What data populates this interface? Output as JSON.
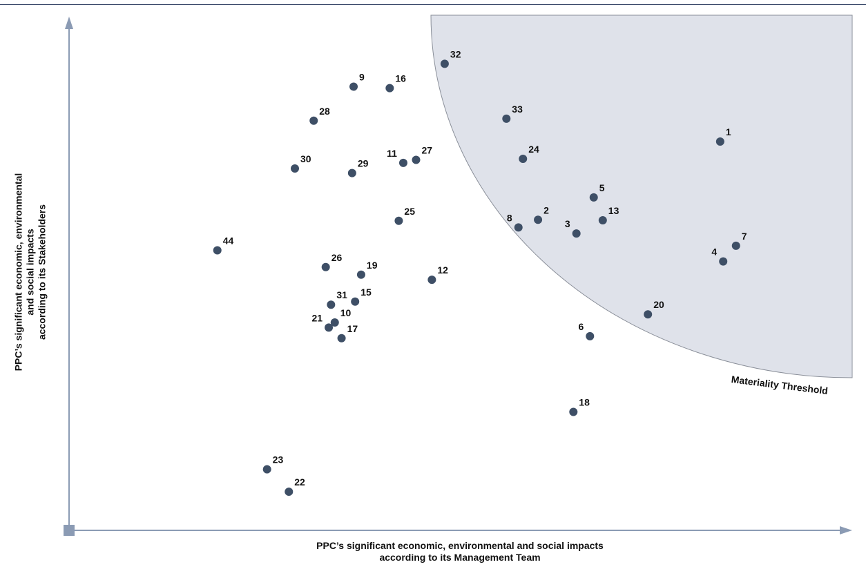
{
  "colors": {
    "point": "#3e4f66",
    "region": "#dfe2ea",
    "axis": "#8b9bb4",
    "frame": "#3b4a6b"
  },
  "threshold_label": "Materiality Threshold",
  "chart_data": {
    "type": "scatter",
    "title": "",
    "xlabel": "PPC’s significant economic, environmental and social impacts\naccording to its Management Team",
    "ylabel": "PPC’s significant economic, environmental\nand social impacts\naccording to its Stakeholders",
    "xlim": [
      0,
      100
    ],
    "ylim": [
      0,
      100
    ],
    "grid": false,
    "legend": "none",
    "points": [
      {
        "label": "1",
        "x": 86.5,
        "y": 76.5
      },
      {
        "label": "2",
        "x": 62.3,
        "y": 61.1
      },
      {
        "label": "3",
        "x": 67.4,
        "y": 58.4
      },
      {
        "label": "4",
        "x": 86.9,
        "y": 52.9
      },
      {
        "label": "5",
        "x": 69.7,
        "y": 65.5
      },
      {
        "label": "6",
        "x": 69.2,
        "y": 38.2
      },
      {
        "label": "7",
        "x": 88.6,
        "y": 56.0
      },
      {
        "label": "8",
        "x": 59.7,
        "y": 59.6
      },
      {
        "label": "9",
        "x": 37.8,
        "y": 87.3
      },
      {
        "label": "10",
        "x": 35.3,
        "y": 40.9
      },
      {
        "label": "11",
        "x": 44.4,
        "y": 72.3
      },
      {
        "label": "12",
        "x": 48.2,
        "y": 49.3
      },
      {
        "label": "13",
        "x": 70.9,
        "y": 61.0
      },
      {
        "label": "15",
        "x": 38.0,
        "y": 45.0
      },
      {
        "label": "16",
        "x": 42.6,
        "y": 87.0
      },
      {
        "label": "17",
        "x": 36.2,
        "y": 37.8
      },
      {
        "label": "18",
        "x": 67.0,
        "y": 23.3
      },
      {
        "label": "19",
        "x": 38.8,
        "y": 50.3
      },
      {
        "label": "20",
        "x": 76.9,
        "y": 42.5
      },
      {
        "label": "21",
        "x": 34.5,
        "y": 39.9
      },
      {
        "label": "22",
        "x": 29.2,
        "y": 7.6
      },
      {
        "label": "23",
        "x": 26.3,
        "y": 12.0
      },
      {
        "label": "24",
        "x": 60.3,
        "y": 73.1
      },
      {
        "label": "25",
        "x": 43.8,
        "y": 60.9
      },
      {
        "label": "26",
        "x": 34.1,
        "y": 51.8
      },
      {
        "label": "27",
        "x": 46.1,
        "y": 72.9
      },
      {
        "label": "28",
        "x": 32.5,
        "y": 80.6
      },
      {
        "label": "29",
        "x": 37.6,
        "y": 70.3
      },
      {
        "label": "30",
        "x": 30.0,
        "y": 71.2
      },
      {
        "label": "31",
        "x": 34.8,
        "y": 44.4
      },
      {
        "label": "32",
        "x": 49.9,
        "y": 91.8
      },
      {
        "label": "33",
        "x": 58.1,
        "y": 81.0
      },
      {
        "label": "44",
        "x": 19.7,
        "y": 55.1
      }
    ]
  }
}
